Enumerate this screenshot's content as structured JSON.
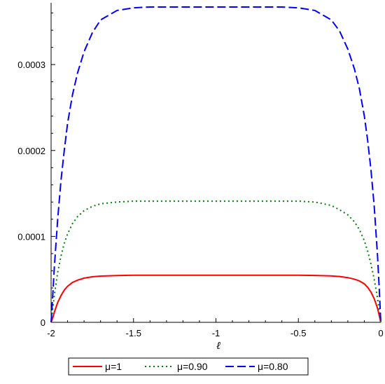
{
  "chart_data": {
    "type": "line",
    "title": "",
    "xlabel": "ℓ",
    "ylabel": "",
    "xlim": [
      -2,
      0
    ],
    "ylim": [
      0,
      0.000367
    ],
    "x_ticks": [
      -2,
      -1.5,
      -1,
      -0.5,
      0
    ],
    "x_tick_labels": [
      "-2",
      "-1.5",
      "-1",
      "-0.5",
      "0"
    ],
    "y_ticks": [
      0,
      0.0001,
      0.0002,
      0.0003
    ],
    "y_tick_labels": [
      "0",
      "0.0001",
      "0.0002",
      "0.0003"
    ],
    "grid": false,
    "legend_position": "bottom",
    "x": [
      -2.0,
      -1.99,
      -1.98,
      -1.96,
      -1.94,
      -1.92,
      -1.9,
      -1.87,
      -1.84,
      -1.8,
      -1.75,
      -1.7,
      -1.6,
      -1.5,
      -1.4,
      -1.3,
      -1.2,
      -1.1,
      -1.0,
      -0.9,
      -0.8,
      -0.7,
      -0.6,
      -0.5,
      -0.4,
      -0.3,
      -0.25,
      -0.2,
      -0.16,
      -0.13,
      -0.1,
      -0.08,
      -0.06,
      -0.04,
      -0.02,
      -0.01,
      0.0
    ],
    "series": [
      {
        "name": "μ=1",
        "color": "#ff0000",
        "style": "solid",
        "values": [
          0.0,
          5.5e-06,
          1.2e-05,
          2.3e-05,
          3.1e-05,
          3.75e-05,
          4.2e-05,
          4.65e-05,
          4.9e-05,
          5.15e-05,
          5.3e-05,
          5.38e-05,
          5.45e-05,
          5.48e-05,
          5.48e-05,
          5.48e-05,
          5.48e-05,
          5.48e-05,
          5.48e-05,
          5.48e-05,
          5.48e-05,
          5.48e-05,
          5.48e-05,
          5.48e-05,
          5.46e-05,
          5.4e-05,
          5.33e-05,
          5.2e-05,
          5.02e-05,
          4.82e-05,
          4.48e-05,
          4.08e-05,
          3.52e-05,
          2.75e-05,
          1.65e-05,
          8.5e-06,
          0.0
        ]
      },
      {
        "name": "μ=0.90",
        "color": "#008000",
        "style": "dotted",
        "values": [
          0.0,
          1.6e-05,
          3.2e-05,
          5.8e-05,
          7.7e-05,
          9.2e-05,
          0.000103,
          0.000115,
          0.000123,
          0.00013,
          0.000135,
          0.000138,
          0.00014,
          0.000141,
          0.000141,
          0.000141,
          0.000141,
          0.000141,
          0.000141,
          0.000141,
          0.000141,
          0.000141,
          0.000141,
          0.000141,
          0.00014,
          0.000136,
          0.000131,
          0.000125,
          0.000117,
          0.000108,
          9.5e-05,
          8.3e-05,
          6.8e-05,
          5e-05,
          2.8e-05,
          1.5e-05,
          0.0
        ]
      },
      {
        "name": "μ=0.80",
        "color": "#0000ff",
        "style": "dashed",
        "values": [
          0.0,
          3.2e-05,
          6.5e-05,
          0.00012,
          0.000165,
          0.0002,
          0.000232,
          0.000265,
          0.00029,
          0.000315,
          0.000337,
          0.000352,
          0.000363,
          0.000366,
          0.000367,
          0.000367,
          0.000367,
          0.000367,
          0.000367,
          0.000367,
          0.000367,
          0.000367,
          0.000367,
          0.000366,
          0.000363,
          0.000352,
          0.000339,
          0.000318,
          0.000295,
          0.000272,
          0.00024,
          0.000212,
          0.000178,
          0.000135,
          7.8e-05,
          4.2e-05,
          0.0
        ]
      }
    ]
  }
}
